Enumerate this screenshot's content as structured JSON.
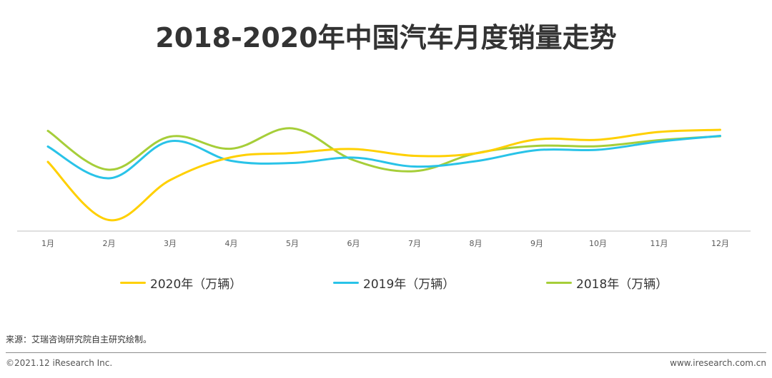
{
  "chart_data": {
    "type": "line",
    "title": "2018-2020年中国汽车月度销量走势",
    "categories": [
      "1月",
      "2月",
      "3月",
      "4月",
      "5月",
      "6月",
      "7月",
      "8月",
      "9月",
      "10月",
      "11月",
      "12月"
    ],
    "series": [
      {
        "name": "2020年（万辆）",
        "color": "#FFD000",
        "values": [
          194,
          31,
          143,
          207,
          219,
          230,
          211,
          218,
          257,
          256,
          278,
          284
        ]
      },
      {
        "name": "2019年（万辆）",
        "color": "#29C3E8",
        "values": [
          237,
          148,
          252,
          197,
          191,
          206,
          181,
          196,
          227,
          228,
          251,
          267
        ]
      },
      {
        "name": "2018年（万辆）",
        "color": "#A6CE39",
        "values": [
          281,
          172,
          265,
          231,
          288,
          199,
          168,
          218,
          239,
          238,
          255,
          266
        ]
      }
    ],
    "xlabel": "",
    "ylabel": "",
    "ylim": [
      0,
      400
    ],
    "grid": false,
    "legend_position": "bottom"
  },
  "source": "来源：艾瑞咨询研究院自主研究绘制。",
  "footer": {
    "copyright": "©2021.12 iResearch Inc.",
    "website": "www.iresearch.com.cn"
  }
}
